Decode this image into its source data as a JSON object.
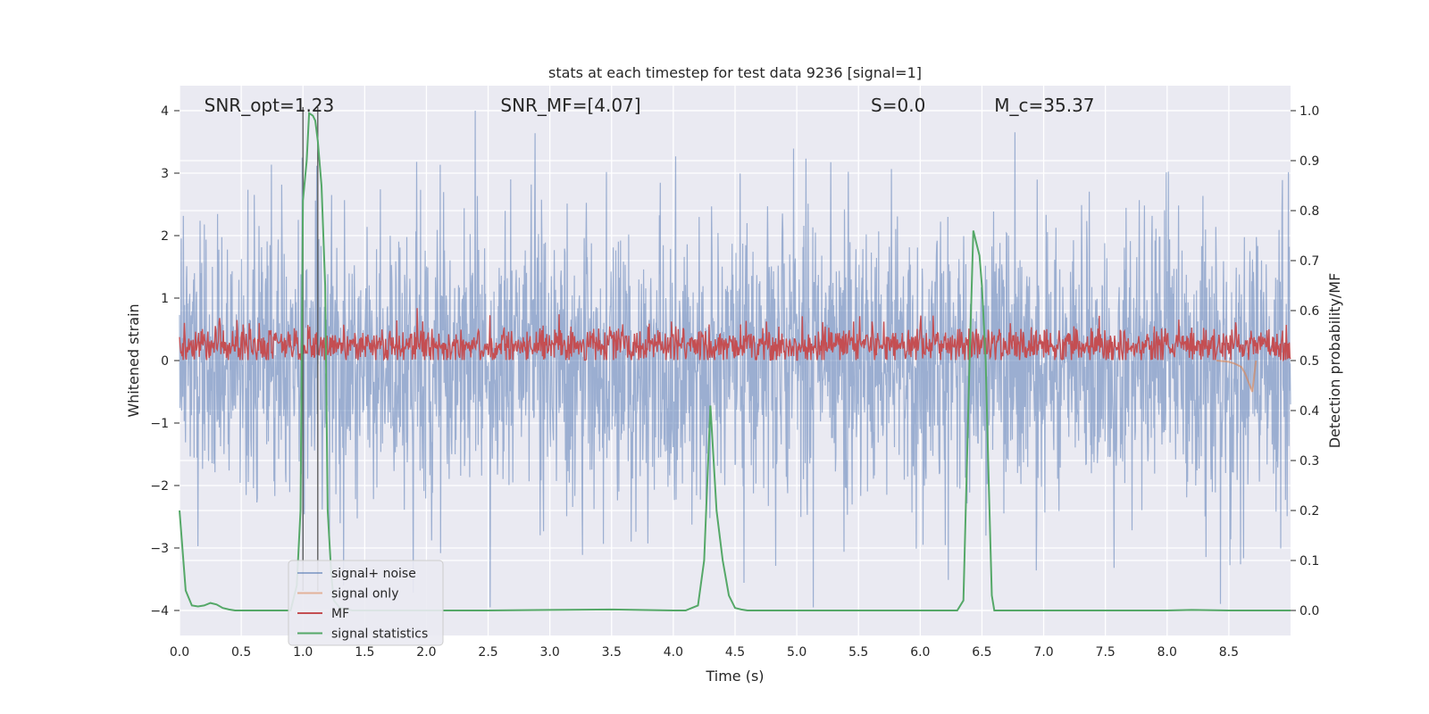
{
  "chart_data": {
    "type": "line",
    "title": "stats at each timestep for test data 9236 [signal=1]",
    "xlabel": "Time (s)",
    "ylabel": "Whitened strain",
    "y2label": "Detection probability/MF",
    "xlim": [
      0.0,
      9.0
    ],
    "ylim": [
      -4.4,
      4.4
    ],
    "y2lim": [
      -0.05,
      1.05
    ],
    "x_ticks": [
      "0.0",
      "0.5",
      "1.0",
      "1.5",
      "2.0",
      "2.5",
      "3.0",
      "3.5",
      "4.0",
      "4.5",
      "5.0",
      "5.5",
      "6.0",
      "6.5",
      "7.0",
      "7.5",
      "8.0",
      "8.5"
    ],
    "y_ticks": [
      "4",
      "3",
      "2",
      "1",
      "0",
      "−1",
      "−2",
      "−3",
      "−4"
    ],
    "y2_ticks": [
      "1.0",
      "0.9",
      "0.8",
      "0.7",
      "0.6",
      "0.5",
      "0.4",
      "0.3",
      "0.2",
      "0.1",
      "0.0"
    ],
    "grid": true,
    "legend_position": "lower-left",
    "annotations": [
      {
        "text": "SNR_opt=1.23",
        "x": 0.2
      },
      {
        "text": "SNR_MF=[4.07]",
        "x": 2.6
      },
      {
        "text": "S=0.0",
        "x": 5.6
      },
      {
        "text": "M_c=35.37",
        "x": 6.6
      }
    ],
    "vertical_lines": [
      1.0,
      1.12
    ],
    "series": [
      {
        "name": "signal+ noise",
        "color": "#4c72b0",
        "description": "noisy whitened strain, amplitude up to about ±4"
      },
      {
        "name": "signal only",
        "color": "#dd8452",
        "x": [
          8.4,
          8.5,
          8.55,
          8.6,
          8.63,
          8.66,
          8.69,
          8.72
        ],
        "values": [
          0.0,
          -0.02,
          -0.05,
          -0.1,
          -0.2,
          -0.35,
          -0.5,
          0.0
        ]
      },
      {
        "name": "MF",
        "color": "#c44e52",
        "description": "matched filter output between 0.5 and 0.6 on right axis"
      },
      {
        "name": "signal statistics",
        "color": "#55a868",
        "x": [
          0.0,
          0.05,
          0.1,
          0.15,
          0.2,
          0.25,
          0.3,
          0.35,
          0.4,
          0.45,
          0.5,
          0.6,
          0.7,
          0.8,
          0.9,
          0.95,
          0.98,
          1.0,
          1.03,
          1.05,
          1.08,
          1.1,
          1.12,
          1.15,
          1.18,
          1.2,
          1.23,
          1.25,
          1.3,
          1.4,
          1.5,
          2.0,
          2.5,
          3.0,
          3.5,
          4.0,
          4.1,
          4.15,
          4.2,
          4.25,
          4.3,
          4.35,
          4.4,
          4.45,
          4.5,
          4.55,
          4.6,
          5.0,
          5.5,
          6.0,
          6.3,
          6.35,
          6.4,
          6.43,
          6.45,
          6.48,
          6.5,
          6.53,
          6.55,
          6.58,
          6.6,
          7.0,
          7.5,
          8.0,
          8.2,
          8.5,
          9.0
        ],
        "values": [
          0.2,
          0.04,
          0.01,
          0.008,
          0.01,
          0.015,
          0.012,
          0.005,
          0.002,
          0.0,
          0.0,
          0.0,
          0.0,
          0.0,
          0.0,
          0.05,
          0.2,
          0.82,
          0.9,
          0.995,
          0.99,
          0.98,
          0.94,
          0.85,
          0.65,
          0.2,
          0.07,
          0.02,
          0.005,
          0.0,
          0.0,
          0.0,
          0.0,
          0.001,
          0.002,
          0.0,
          0.0,
          0.005,
          0.01,
          0.1,
          0.41,
          0.2,
          0.1,
          0.03,
          0.005,
          0.002,
          0.0,
          0.0,
          0.0,
          0.0,
          0.0,
          0.02,
          0.5,
          0.76,
          0.74,
          0.71,
          0.65,
          0.5,
          0.3,
          0.03,
          0.0,
          0.0,
          0.0,
          0.0,
          0.001,
          0.0,
          0.0
        ]
      }
    ]
  }
}
